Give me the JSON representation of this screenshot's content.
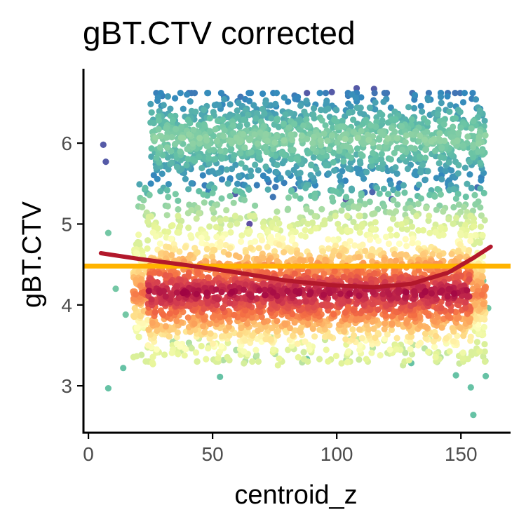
{
  "chart_data": {
    "type": "scatter",
    "title": "gBT.CTV corrected",
    "xlabel": "centroid_z",
    "ylabel": "gBT.CTV",
    "xlim": [
      -2,
      170
    ],
    "ylim": [
      2.42,
      6.92
    ],
    "x_ticks": [
      0,
      50,
      100,
      150
    ],
    "y_ticks": [
      3,
      4,
      5,
      6
    ],
    "grid": false,
    "legend": "none",
    "color_scale": [
      "#5e4fa2",
      "#3288bd",
      "#66c2a5",
      "#abdda4",
      "#e6f598",
      "#ffffbf",
      "#fee08b",
      "#fdae61",
      "#f46d43",
      "#d53e4f",
      "#9e0142"
    ],
    "density_clusters": [
      {
        "x_range": [
          18,
          160
        ],
        "y_center": 4.15,
        "y_spread": 0.35,
        "count": 2600
      },
      {
        "x_range": [
          25,
          160
        ],
        "y_center": 6.05,
        "y_spread": 0.28,
        "count": 1300
      }
    ],
    "scattered_points": [
      {
        "x": 6,
        "y": 5.98
      },
      {
        "x": 7,
        "y": 5.77
      },
      {
        "x": 8,
        "y": 4.89
      },
      {
        "x": 8,
        "y": 2.97
      },
      {
        "x": 11,
        "y": 4.2
      },
      {
        "x": 14,
        "y": 3.22
      },
      {
        "x": 15,
        "y": 3.88
      },
      {
        "x": 53,
        "y": 3.11
      },
      {
        "x": 88,
        "y": 3.33
      },
      {
        "x": 130,
        "y": 3.28
      },
      {
        "x": 148,
        "y": 3.13
      },
      {
        "x": 155,
        "y": 2.64
      },
      {
        "x": 154,
        "y": 2.98
      },
      {
        "x": 160,
        "y": 3.12
      },
      {
        "x": 161,
        "y": 3.96
      },
      {
        "x": 159,
        "y": 4.3
      },
      {
        "x": 98,
        "y": 6.63
      },
      {
        "x": 108,
        "y": 6.68
      },
      {
        "x": 115,
        "y": 6.67
      },
      {
        "x": 88,
        "y": 6.62
      }
    ],
    "smooth_line": {
      "color": "#b2182b",
      "x": [
        5,
        20,
        40,
        60,
        80,
        100,
        115,
        130,
        145,
        155,
        162
      ],
      "y": [
        4.64,
        4.57,
        4.49,
        4.4,
        4.3,
        4.24,
        4.22,
        4.26,
        4.4,
        4.58,
        4.72
      ]
    },
    "hline": {
      "y": 4.48,
      "color": "#ffb300"
    }
  }
}
